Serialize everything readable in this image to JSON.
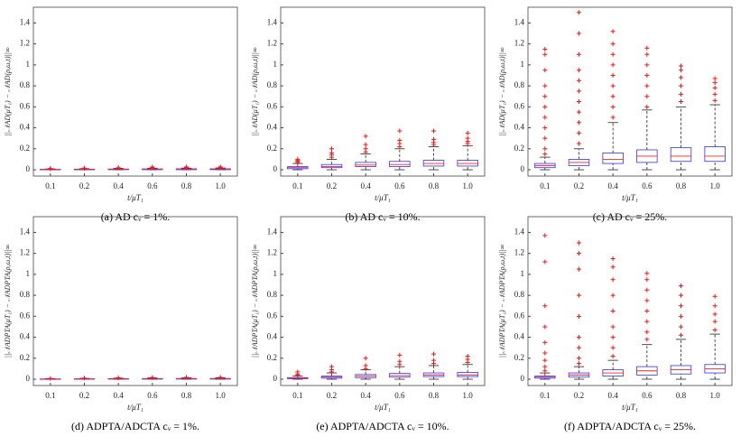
{
  "chart_data": [
    {
      "type": "box",
      "caption": "(a) AD cᵥ = 1%.",
      "y_label": "||𝒩AD(μT₁) − 𝒩AD(ρ,ω,t)||∞",
      "x_label": "t/μT₁",
      "categories": [
        "0.1",
        "0.2",
        "0.4",
        "0.6",
        "0.8",
        "1.0"
      ],
      "ylim": [
        -0.06,
        1.55
      ],
      "yticks": [
        0,
        0.2,
        0.4,
        0.6,
        0.8,
        1,
        1.2,
        1.4
      ],
      "boxes": [
        {
          "low": 0,
          "q1": 0,
          "median": 0.002,
          "q3": 0.004,
          "high": 0.008,
          "outliers": [
            0.01,
            0.012
          ]
        },
        {
          "low": 0,
          "q1": 0,
          "median": 0.003,
          "q3": 0.005,
          "high": 0.01,
          "outliers": [
            0.013,
            0.016
          ]
        },
        {
          "low": 0,
          "q1": 0.001,
          "median": 0.004,
          "q3": 0.007,
          "high": 0.013,
          "outliers": [
            0.016,
            0.02
          ]
        },
        {
          "low": 0,
          "q1": 0.001,
          "median": 0.004,
          "q3": 0.008,
          "high": 0.015,
          "outliers": [
            0.02,
            0.026
          ]
        },
        {
          "low": 0,
          "q1": 0.001,
          "median": 0.005,
          "q3": 0.009,
          "high": 0.016,
          "outliers": [
            0.02,
            0.027
          ]
        },
        {
          "low": 0,
          "q1": 0.001,
          "median": 0.005,
          "q3": 0.009,
          "high": 0.017,
          "outliers": [
            0.021,
            0.027
          ]
        }
      ]
    },
    {
      "type": "box",
      "caption": "(b) AD cᵥ = 10%.",
      "y_label": "||𝒩AD(μT₁) − 𝒩AD(ρ,ω,t)||∞",
      "x_label": "t/μT₁",
      "categories": [
        "0.1",
        "0.2",
        "0.4",
        "0.6",
        "0.8",
        "1.0"
      ],
      "ylim": [
        -0.06,
        1.55
      ],
      "yticks": [
        0,
        0.2,
        0.4,
        0.6,
        0.8,
        1,
        1.2,
        1.4
      ],
      "boxes": [
        {
          "low": 0,
          "q1": 0.01,
          "median": 0.02,
          "q3": 0.03,
          "high": 0.06,
          "outliers": [
            0.07,
            0.08,
            0.09,
            0.1
          ]
        },
        {
          "low": 0,
          "q1": 0.02,
          "median": 0.03,
          "q3": 0.05,
          "high": 0.1,
          "outliers": [
            0.12,
            0.14,
            0.16,
            0.2
          ]
        },
        {
          "low": 0,
          "q1": 0.03,
          "median": 0.045,
          "q3": 0.07,
          "high": 0.15,
          "outliers": [
            0.17,
            0.2,
            0.24,
            0.32
          ]
        },
        {
          "low": 0,
          "q1": 0.03,
          "median": 0.05,
          "q3": 0.08,
          "high": 0.2,
          "outliers": [
            0.22,
            0.25,
            0.28,
            0.37
          ]
        },
        {
          "low": 0,
          "q1": 0.035,
          "median": 0.06,
          "q3": 0.09,
          "high": 0.22,
          "outliers": [
            0.24,
            0.26,
            0.29,
            0.37
          ]
        },
        {
          "low": 0,
          "q1": 0.035,
          "median": 0.06,
          "q3": 0.09,
          "high": 0.23,
          "outliers": [
            0.25,
            0.27,
            0.3,
            0.35
          ]
        }
      ]
    },
    {
      "type": "box",
      "caption": "(c) AD cᵥ = 25%.",
      "y_label": "||𝒩AD(μT₁) − 𝒩AD(ρ,ω,t)||∞",
      "x_label": "t/μT₁",
      "categories": [
        "0.1",
        "0.2",
        "0.4",
        "0.6",
        "0.8",
        "1.0"
      ],
      "ylim": [
        -0.06,
        1.55
      ],
      "yticks": [
        0,
        0.2,
        0.4,
        0.6,
        0.8,
        1,
        1.2,
        1.4
      ],
      "boxes": [
        {
          "low": 0,
          "q1": 0.02,
          "median": 0.04,
          "q3": 0.06,
          "high": 0.12,
          "outliers": [
            0.15,
            0.2,
            0.3,
            0.4,
            0.5,
            0.6,
            0.7,
            0.8,
            0.95,
            1.1,
            1.15
          ]
        },
        {
          "low": 0,
          "q1": 0.04,
          "median": 0.07,
          "q3": 0.1,
          "high": 0.2,
          "outliers": [
            0.25,
            0.35,
            0.45,
            0.55,
            0.65,
            0.75,
            0.85,
            0.95,
            1.1,
            1.3,
            1.5
          ]
        },
        {
          "low": 0,
          "q1": 0.06,
          "median": 0.1,
          "q3": 0.16,
          "high": 0.45,
          "outliers": [
            0.5,
            0.6,
            0.7,
            0.8,
            0.9,
            1.0,
            1.1,
            1.2,
            1.32
          ]
        },
        {
          "low": 0,
          "q1": 0.07,
          "median": 0.13,
          "q3": 0.19,
          "high": 0.57,
          "outliers": [
            0.6,
            0.7,
            0.8,
            0.9,
            1.0,
            1.1,
            1.16
          ]
        },
        {
          "low": 0,
          "q1": 0.08,
          "median": 0.13,
          "q3": 0.21,
          "high": 0.6,
          "outliers": [
            0.65,
            0.72,
            0.8,
            0.88,
            0.95,
            0.99
          ]
        },
        {
          "low": 0,
          "q1": 0.08,
          "median": 0.13,
          "q3": 0.22,
          "high": 0.62,
          "outliers": [
            0.66,
            0.72,
            0.78,
            0.83,
            0.87
          ]
        }
      ]
    },
    {
      "type": "box",
      "caption": "(d) ADPTA/ADCTA cᵥ = 1%.",
      "y_label": "||𝒩ADPTA(μT₁) − 𝒩ADPTA(ρ,ω,t)||∞",
      "x_label": "t/μT₁",
      "categories": [
        "0.1",
        "0.2",
        "0.4",
        "0.6",
        "0.8",
        "1.0"
      ],
      "ylim": [
        -0.06,
        1.55
      ],
      "yticks": [
        0,
        0.2,
        0.4,
        0.6,
        0.8,
        1,
        1.2,
        1.4
      ],
      "boxes": [
        {
          "low": 0,
          "q1": 0,
          "median": 0.001,
          "q3": 0.003,
          "high": 0.006,
          "outliers": [
            0.008
          ]
        },
        {
          "low": 0,
          "q1": 0,
          "median": 0.002,
          "q3": 0.004,
          "high": 0.008,
          "outliers": [
            0.011
          ]
        },
        {
          "low": 0,
          "q1": 0.001,
          "median": 0.003,
          "q3": 0.005,
          "high": 0.01,
          "outliers": [
            0.014
          ]
        },
        {
          "low": 0,
          "q1": 0.001,
          "median": 0.003,
          "q3": 0.006,
          "high": 0.012,
          "outliers": [
            0.016
          ]
        },
        {
          "low": 0,
          "q1": 0.001,
          "median": 0.004,
          "q3": 0.007,
          "high": 0.013,
          "outliers": [
            0.018
          ]
        },
        {
          "low": 0,
          "q1": 0.001,
          "median": 0.004,
          "q3": 0.007,
          "high": 0.014,
          "outliers": [
            0.019
          ]
        }
      ]
    },
    {
      "type": "box",
      "caption": "(e) ADPTA/ADCTA cᵥ = 10%.",
      "y_label": "||𝒩ADPTA(μT₁) − 𝒩ADPTA(ρ,ω,t)||∞",
      "x_label": "t/μT₁",
      "categories": [
        "0.1",
        "0.2",
        "0.4",
        "0.6",
        "0.8",
        "1.0"
      ],
      "ylim": [
        -0.06,
        1.55
      ],
      "yticks": [
        0,
        0.2,
        0.4,
        0.6,
        0.8,
        1,
        1.2,
        1.4
      ],
      "boxes": [
        {
          "low": 0,
          "q1": 0.005,
          "median": 0.01,
          "q3": 0.015,
          "high": 0.03,
          "outliers": [
            0.04,
            0.05,
            0.07
          ]
        },
        {
          "low": 0,
          "q1": 0.01,
          "median": 0.02,
          "q3": 0.03,
          "high": 0.06,
          "outliers": [
            0.07,
            0.09,
            0.12
          ]
        },
        {
          "low": 0,
          "q1": 0.015,
          "median": 0.03,
          "q3": 0.045,
          "high": 0.09,
          "outliers": [
            0.1,
            0.13,
            0.2
          ]
        },
        {
          "low": 0,
          "q1": 0.02,
          "median": 0.035,
          "q3": 0.055,
          "high": 0.12,
          "outliers": [
            0.14,
            0.17,
            0.23
          ]
        },
        {
          "low": 0,
          "q1": 0.025,
          "median": 0.04,
          "q3": 0.06,
          "high": 0.13,
          "outliers": [
            0.15,
            0.18,
            0.24
          ]
        },
        {
          "low": 0,
          "q1": 0.025,
          "median": 0.04,
          "q3": 0.065,
          "high": 0.14,
          "outliers": [
            0.16,
            0.19,
            0.22
          ]
        }
      ]
    },
    {
      "type": "box",
      "caption": "(f) ADPTA/ADCTA cᵥ = 25%.",
      "y_label": "||𝒩ADPTA(μT₁) − 𝒩ADPTA(ρ,ω,t)||∞",
      "x_label": "t/μT₁",
      "categories": [
        "0.1",
        "0.2",
        "0.4",
        "0.6",
        "0.8",
        "1.0"
      ],
      "ylim": [
        -0.06,
        1.55
      ],
      "yticks": [
        0,
        0.2,
        0.4,
        0.6,
        0.8,
        1,
        1.2,
        1.4
      ],
      "boxes": [
        {
          "low": 0,
          "q1": 0.01,
          "median": 0.02,
          "q3": 0.03,
          "high": 0.06,
          "outliers": [
            0.08,
            0.12,
            0.18,
            0.25,
            0.35,
            0.5,
            0.7,
            1.12,
            1.37
          ]
        },
        {
          "low": 0,
          "q1": 0.02,
          "median": 0.04,
          "q3": 0.06,
          "high": 0.12,
          "outliers": [
            0.15,
            0.2,
            0.3,
            0.4,
            0.6,
            0.8,
            1.05,
            1.2,
            1.3
          ]
        },
        {
          "low": 0,
          "q1": 0.03,
          "median": 0.06,
          "q3": 0.09,
          "high": 0.18,
          "outliers": [
            0.22,
            0.3,
            0.4,
            0.5,
            0.65,
            0.8,
            0.95,
            1.07,
            1.15
          ]
        },
        {
          "low": 0,
          "q1": 0.04,
          "median": 0.08,
          "q3": 0.12,
          "high": 0.33,
          "outliers": [
            0.38,
            0.45,
            0.55,
            0.65,
            0.75,
            0.85,
            0.95,
            1.01
          ]
        },
        {
          "low": 0,
          "q1": 0.05,
          "median": 0.09,
          "q3": 0.13,
          "high": 0.38,
          "outliers": [
            0.42,
            0.5,
            0.6,
            0.7,
            0.8,
            0.89
          ]
        },
        {
          "low": 0,
          "q1": 0.06,
          "median": 0.1,
          "q3": 0.14,
          "high": 0.43,
          "outliers": [
            0.47,
            0.55,
            0.62,
            0.7,
            0.79
          ]
        }
      ]
    }
  ]
}
